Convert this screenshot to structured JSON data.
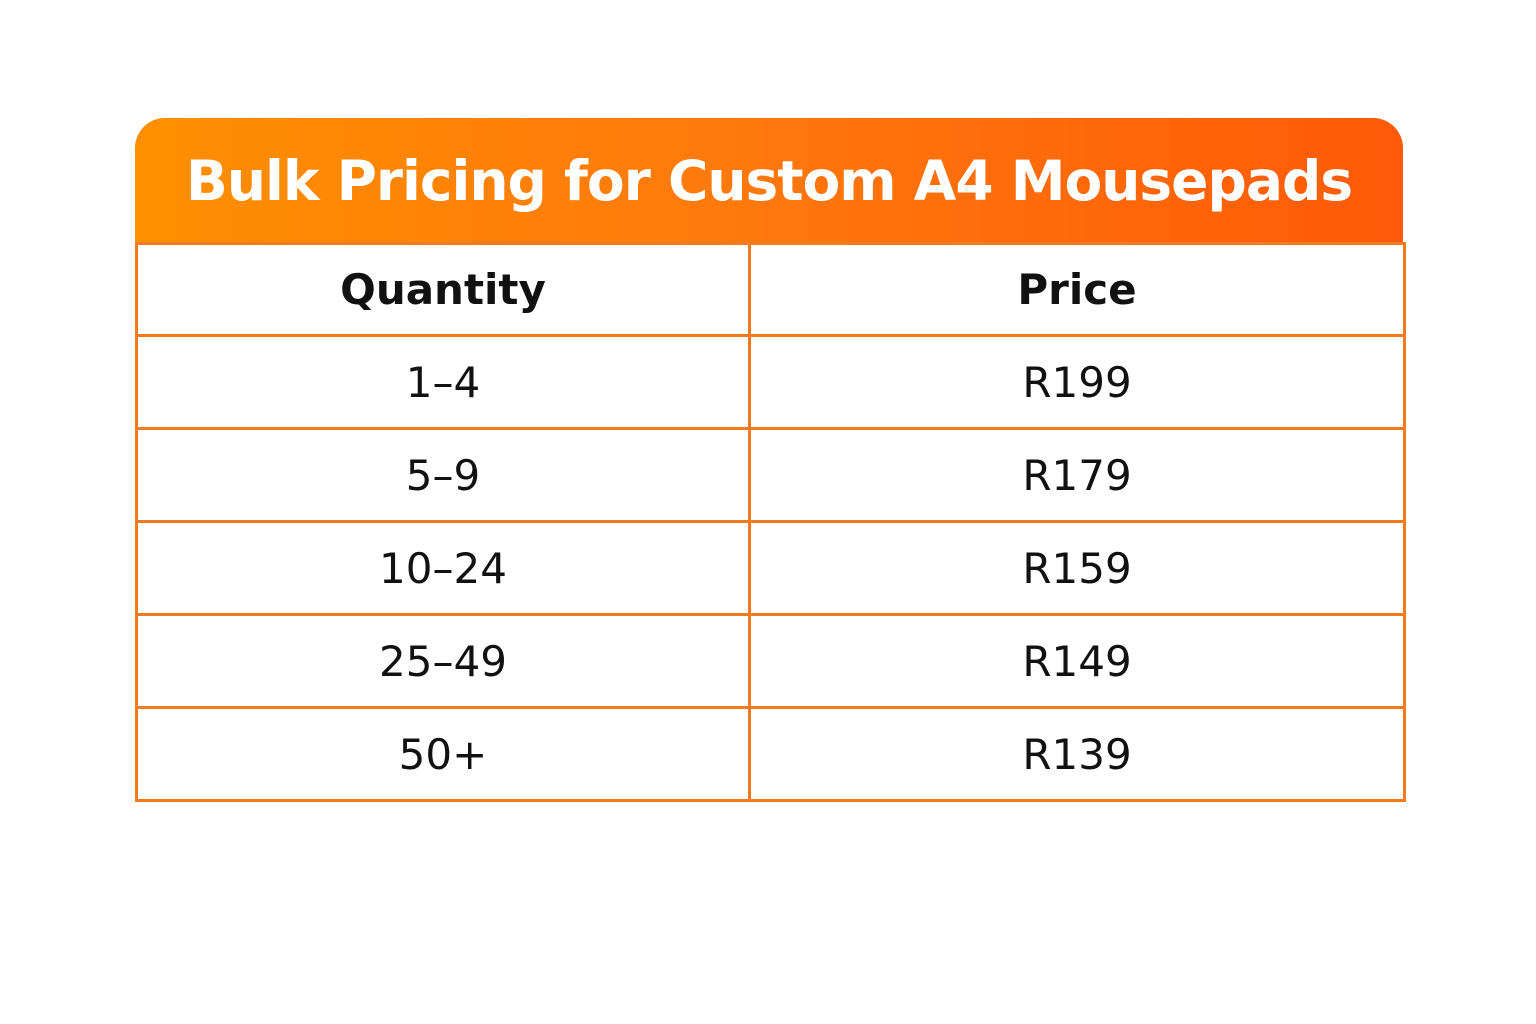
{
  "title": "Bulk Pricing for Custom A4 Mousepads",
  "table": {
    "headers": [
      "Quantity",
      "Price"
    ],
    "rows": [
      {
        "quantity": "1–4",
        "price": "R199"
      },
      {
        "quantity": "5–9",
        "price": "R179"
      },
      {
        "quantity": "10–24",
        "price": "R159"
      },
      {
        "quantity": "25–49",
        "price": "R149"
      },
      {
        "quantity": "50+",
        "price": "R139"
      }
    ]
  },
  "colors": {
    "header_gradient_start": "#ff8f00",
    "header_gradient_end": "#ff5a08",
    "border": "#f47a1f",
    "title_text": "#ffffff",
    "body_text": "#111111"
  }
}
